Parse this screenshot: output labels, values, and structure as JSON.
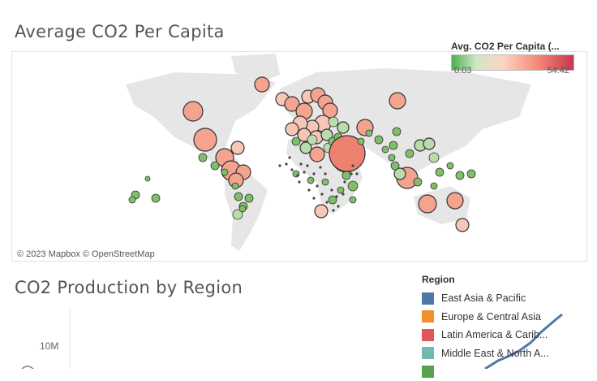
{
  "map_section": {
    "title": "Average CO2 Per Capita",
    "attribution": "© 2023 Mapbox  © OpenStreetMap",
    "color_legend": {
      "title": "Avg. CO2 Per Capita (...",
      "min_label": "0.03",
      "max_label": "54.42",
      "colors": {
        "low": "#4caf50",
        "mid": "#fbd4c4",
        "high": "#c8354f"
      }
    }
  },
  "chart_section": {
    "title": "CO2 Production by Region",
    "y_tick": "10M",
    "line_color": "#4e79a7",
    "region_legend": {
      "title": "Region",
      "items": [
        {
          "label": "East Asia & Pacific",
          "color": "#4e79a7"
        },
        {
          "label": "Europe & Central Asia",
          "color": "#f28e2b"
        },
        {
          "label": "Latin America & Carib...",
          "color": "#e15759"
        },
        {
          "label": "Middle East & North A...",
          "color": "#76b7b2"
        },
        {
          "label": "",
          "color": "#59a14f"
        }
      ]
    }
  }
}
